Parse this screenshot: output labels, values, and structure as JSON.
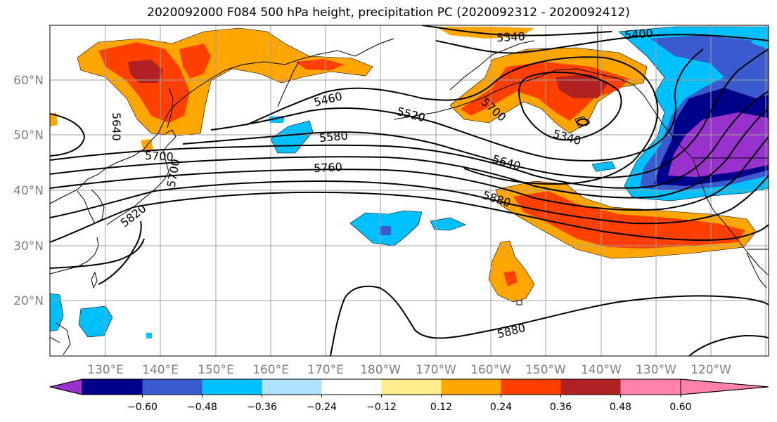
{
  "title": "2020092000 F084 500 hPa height, precipitation PC (2020092312 - 2020092412)",
  "map": {
    "lon_labels": [
      "130°E",
      "140°E",
      "150°E",
      "160°E",
      "170°E",
      "180°W",
      "170°W",
      "160°W",
      "150°W",
      "140°W",
      "130°W",
      "120°W"
    ],
    "lat_labels": [
      "60°N",
      "50°N",
      "40°N",
      "30°N",
      "20°N"
    ],
    "contour_labels": [
      "5340",
      "5400",
      "5460",
      "5520",
      "5580",
      "5640",
      "5700",
      "5760",
      "5820",
      "5880",
      "5640",
      "5700",
      "5340",
      "5700",
      "5880"
    ],
    "gridline_color": "#a0a0a0"
  },
  "colorbar": {
    "tick_labels": [
      "−0.60",
      "−0.48",
      "−0.36",
      "−0.24",
      "−0.12",
      "0.12",
      "0.24",
      "0.36",
      "0.48",
      "0.60"
    ],
    "colors": [
      "#9932cc",
      "#00008b",
      "#3a5bcd",
      "#00bfff",
      "#b0e2ff",
      "#ffffff",
      "#ffec8b",
      "#ffa500",
      "#ff4000",
      "#b22222",
      "#ff82ab"
    ]
  },
  "colors": {
    "neg_strong": "#9932cc",
    "neg_navy": "#00008b",
    "neg_blue": "#3a5bcd",
    "neg_sky": "#00bfff",
    "neg_light": "#b0e2ff",
    "pos_light": "#ffec8b",
    "pos_orange": "#ffa500",
    "pos_red": "#ff4000",
    "pos_dark": "#b22222",
    "pos_pink": "#ff82ab"
  }
}
